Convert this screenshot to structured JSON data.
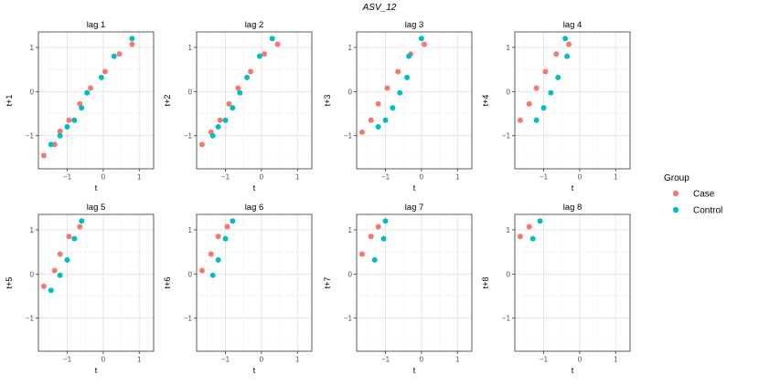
{
  "title": "ASV_12",
  "legend": {
    "title": "Group",
    "items": [
      {
        "label": "Case",
        "color": "#F8766D"
      },
      {
        "label": "Control",
        "color": "#00BFC4"
      }
    ],
    "placement": "right"
  },
  "chart_data": {
    "type": "scatter",
    "title": "ASV_12",
    "xlim": [
      -1.8,
      1.4
    ],
    "ylim": [
      -1.75,
      1.35
    ],
    "x_ticks": [
      -1,
      0,
      1
    ],
    "y_ticks": [
      -1,
      0,
      1
    ],
    "x_tick_labels": [
      "−1",
      "0",
      "1"
    ],
    "y_tick_labels": [
      "−1",
      "0",
      "1"
    ],
    "grid": true,
    "panels": [
      {
        "title": "lag 1",
        "xlabel": "t",
        "ylabel": "t+1",
        "series": [
          {
            "name": "Case",
            "points": [
              [
                -1.65,
                -1.45
              ],
              [
                -1.35,
                -1.2
              ],
              [
                -1.2,
                -0.9
              ],
              [
                -0.95,
                -0.65
              ],
              [
                -0.65,
                -0.28
              ],
              [
                -0.35,
                0.08
              ],
              [
                0.05,
                0.45
              ],
              [
                0.45,
                0.85
              ],
              [
                0.8,
                1.07
              ]
            ]
          },
          {
            "name": "Control",
            "points": [
              [
                -1.45,
                -1.2
              ],
              [
                -1.2,
                -1.0
              ],
              [
                -1.0,
                -0.8
              ],
              [
                -0.8,
                -0.65
              ],
              [
                -0.6,
                -0.37
              ],
              [
                -0.45,
                -0.03
              ],
              [
                -0.05,
                0.32
              ],
              [
                0.3,
                0.8
              ],
              [
                0.8,
                1.2
              ]
            ]
          }
        ]
      },
      {
        "title": "lag 2",
        "xlabel": "t",
        "ylabel": "t+2",
        "series": [
          {
            "name": "Case",
            "points": [
              [
                -1.65,
                -1.2
              ],
              [
                -1.4,
                -0.92
              ],
              [
                -1.15,
                -0.65
              ],
              [
                -0.9,
                -0.28
              ],
              [
                -0.65,
                0.08
              ],
              [
                -0.3,
                0.45
              ],
              [
                0.08,
                0.85
              ],
              [
                0.45,
                1.07
              ]
            ]
          },
          {
            "name": "Control",
            "points": [
              [
                -1.35,
                -1.0
              ],
              [
                -1.2,
                -0.8
              ],
              [
                -1.0,
                -0.65
              ],
              [
                -0.8,
                -0.37
              ],
              [
                -0.6,
                -0.03
              ],
              [
                -0.4,
                0.32
              ],
              [
                -0.05,
                0.8
              ],
              [
                0.3,
                1.2
              ]
            ]
          }
        ]
      },
      {
        "title": "lag 3",
        "xlabel": "t",
        "ylabel": "t+3",
        "series": [
          {
            "name": "Case",
            "points": [
              [
                -1.65,
                -0.92
              ],
              [
                -1.4,
                -0.65
              ],
              [
                -1.2,
                -0.28
              ],
              [
                -0.95,
                0.08
              ],
              [
                -0.65,
                0.45
              ],
              [
                -0.3,
                0.85
              ],
              [
                0.08,
                1.07
              ]
            ]
          },
          {
            "name": "Control",
            "points": [
              [
                -1.2,
                -0.8
              ],
              [
                -1.0,
                -0.65
              ],
              [
                -0.8,
                -0.37
              ],
              [
                -0.6,
                -0.03
              ],
              [
                -0.4,
                0.32
              ],
              [
                -0.35,
                0.8
              ],
              [
                0.0,
                1.2
              ]
            ]
          }
        ]
      },
      {
        "title": "lag 4",
        "xlabel": "t",
        "ylabel": "t+4",
        "series": [
          {
            "name": "Case",
            "points": [
              [
                -1.65,
                -0.65
              ],
              [
                -1.4,
                -0.28
              ],
              [
                -1.2,
                0.08
              ],
              [
                -0.95,
                0.45
              ],
              [
                -0.65,
                0.85
              ],
              [
                -0.3,
                1.07
              ]
            ]
          },
          {
            "name": "Control",
            "points": [
              [
                -1.2,
                -0.65
              ],
              [
                -1.0,
                -0.37
              ],
              [
                -0.8,
                -0.03
              ],
              [
                -0.6,
                0.32
              ],
              [
                -0.35,
                0.8
              ],
              [
                -0.4,
                1.2
              ]
            ]
          }
        ]
      },
      {
        "title": "lag 5",
        "xlabel": "t",
        "ylabel": "t+5",
        "series": [
          {
            "name": "Case",
            "points": [
              [
                -1.65,
                -0.28
              ],
              [
                -1.35,
                0.08
              ],
              [
                -1.2,
                0.45
              ],
              [
                -0.95,
                0.85
              ],
              [
                -0.65,
                1.07
              ]
            ]
          },
          {
            "name": "Control",
            "points": [
              [
                -1.45,
                -0.37
              ],
              [
                -1.2,
                -0.03
              ],
              [
                -1.0,
                0.32
              ],
              [
                -0.8,
                0.8
              ],
              [
                -0.6,
                1.2
              ]
            ]
          }
        ]
      },
      {
        "title": "lag 6",
        "xlabel": "t",
        "ylabel": "t+6",
        "series": [
          {
            "name": "Case",
            "points": [
              [
                -1.65,
                0.08
              ],
              [
                -1.4,
                0.45
              ],
              [
                -1.2,
                0.85
              ],
              [
                -0.95,
                1.07
              ]
            ]
          },
          {
            "name": "Control",
            "points": [
              [
                -1.35,
                -0.03
              ],
              [
                -1.2,
                0.32
              ],
              [
                -1.0,
                0.8
              ],
              [
                -0.8,
                1.2
              ]
            ]
          }
        ]
      },
      {
        "title": "lag 7",
        "xlabel": "t",
        "ylabel": "t+7",
        "series": [
          {
            "name": "Case",
            "points": [
              [
                -1.65,
                0.45
              ],
              [
                -1.4,
                0.85
              ],
              [
                -1.2,
                1.07
              ]
            ]
          },
          {
            "name": "Control",
            "points": [
              [
                -1.3,
                0.32
              ],
              [
                -1.05,
                0.8
              ],
              [
                -1.0,
                1.2
              ]
            ]
          }
        ]
      },
      {
        "title": "lag 8",
        "xlabel": "t",
        "ylabel": "t+8",
        "series": [
          {
            "name": "Case",
            "points": [
              [
                -1.65,
                0.85
              ],
              [
                -1.4,
                1.07
              ]
            ]
          },
          {
            "name": "Control",
            "points": [
              [
                -1.3,
                0.8
              ],
              [
                -1.1,
                1.2
              ]
            ]
          }
        ]
      }
    ]
  }
}
